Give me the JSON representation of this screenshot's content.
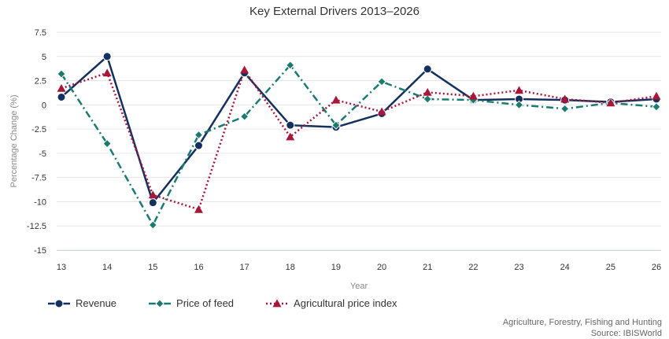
{
  "chart_data": {
    "type": "line",
    "title": "Key External Drivers 2013–2026",
    "xlabel": "Year",
    "ylabel": "Percentage Change (%)",
    "categories": [
      "13",
      "14",
      "15",
      "16",
      "17",
      "18",
      "19",
      "20",
      "21",
      "22",
      "23",
      "24",
      "25",
      "26"
    ],
    "yticks": [
      "7.5",
      "5",
      "2.5",
      "0",
      "-2.5",
      "-5",
      "-7.5",
      "-10",
      "-12.5",
      "-15"
    ],
    "ylim": [
      -15,
      7.5
    ],
    "grid": true,
    "legend_position": "bottom-left",
    "series": [
      {
        "name": "Revenue",
        "color": "#14305e",
        "marker": "circle",
        "dash": "solid",
        "values": [
          0.8,
          5.0,
          -10.1,
          -4.2,
          3.3,
          -2.1,
          -2.3,
          -0.9,
          3.7,
          0.5,
          0.6,
          0.5,
          0.3,
          0.6
        ]
      },
      {
        "name": "Price of feed",
        "color": "#1a7a70",
        "marker": "diamond",
        "dash": "dashdot",
        "values": [
          3.2,
          -4.0,
          -12.4,
          -3.1,
          -1.2,
          4.1,
          -2.1,
          2.4,
          0.6,
          0.5,
          0.0,
          -0.4,
          0.2,
          -0.2
        ]
      },
      {
        "name": "Agricultural price index",
        "color": "#a8173a",
        "marker": "triangle",
        "dash": "dotted",
        "values": [
          1.7,
          3.3,
          -9.3,
          -10.8,
          3.6,
          -3.3,
          0.5,
          -0.7,
          1.3,
          0.9,
          1.5,
          0.6,
          0.2,
          0.9
        ]
      }
    ]
  },
  "footer": {
    "line1": "Agriculture, Forestry, Fishing and Hunting",
    "line2": "Source: IBISWorld"
  }
}
